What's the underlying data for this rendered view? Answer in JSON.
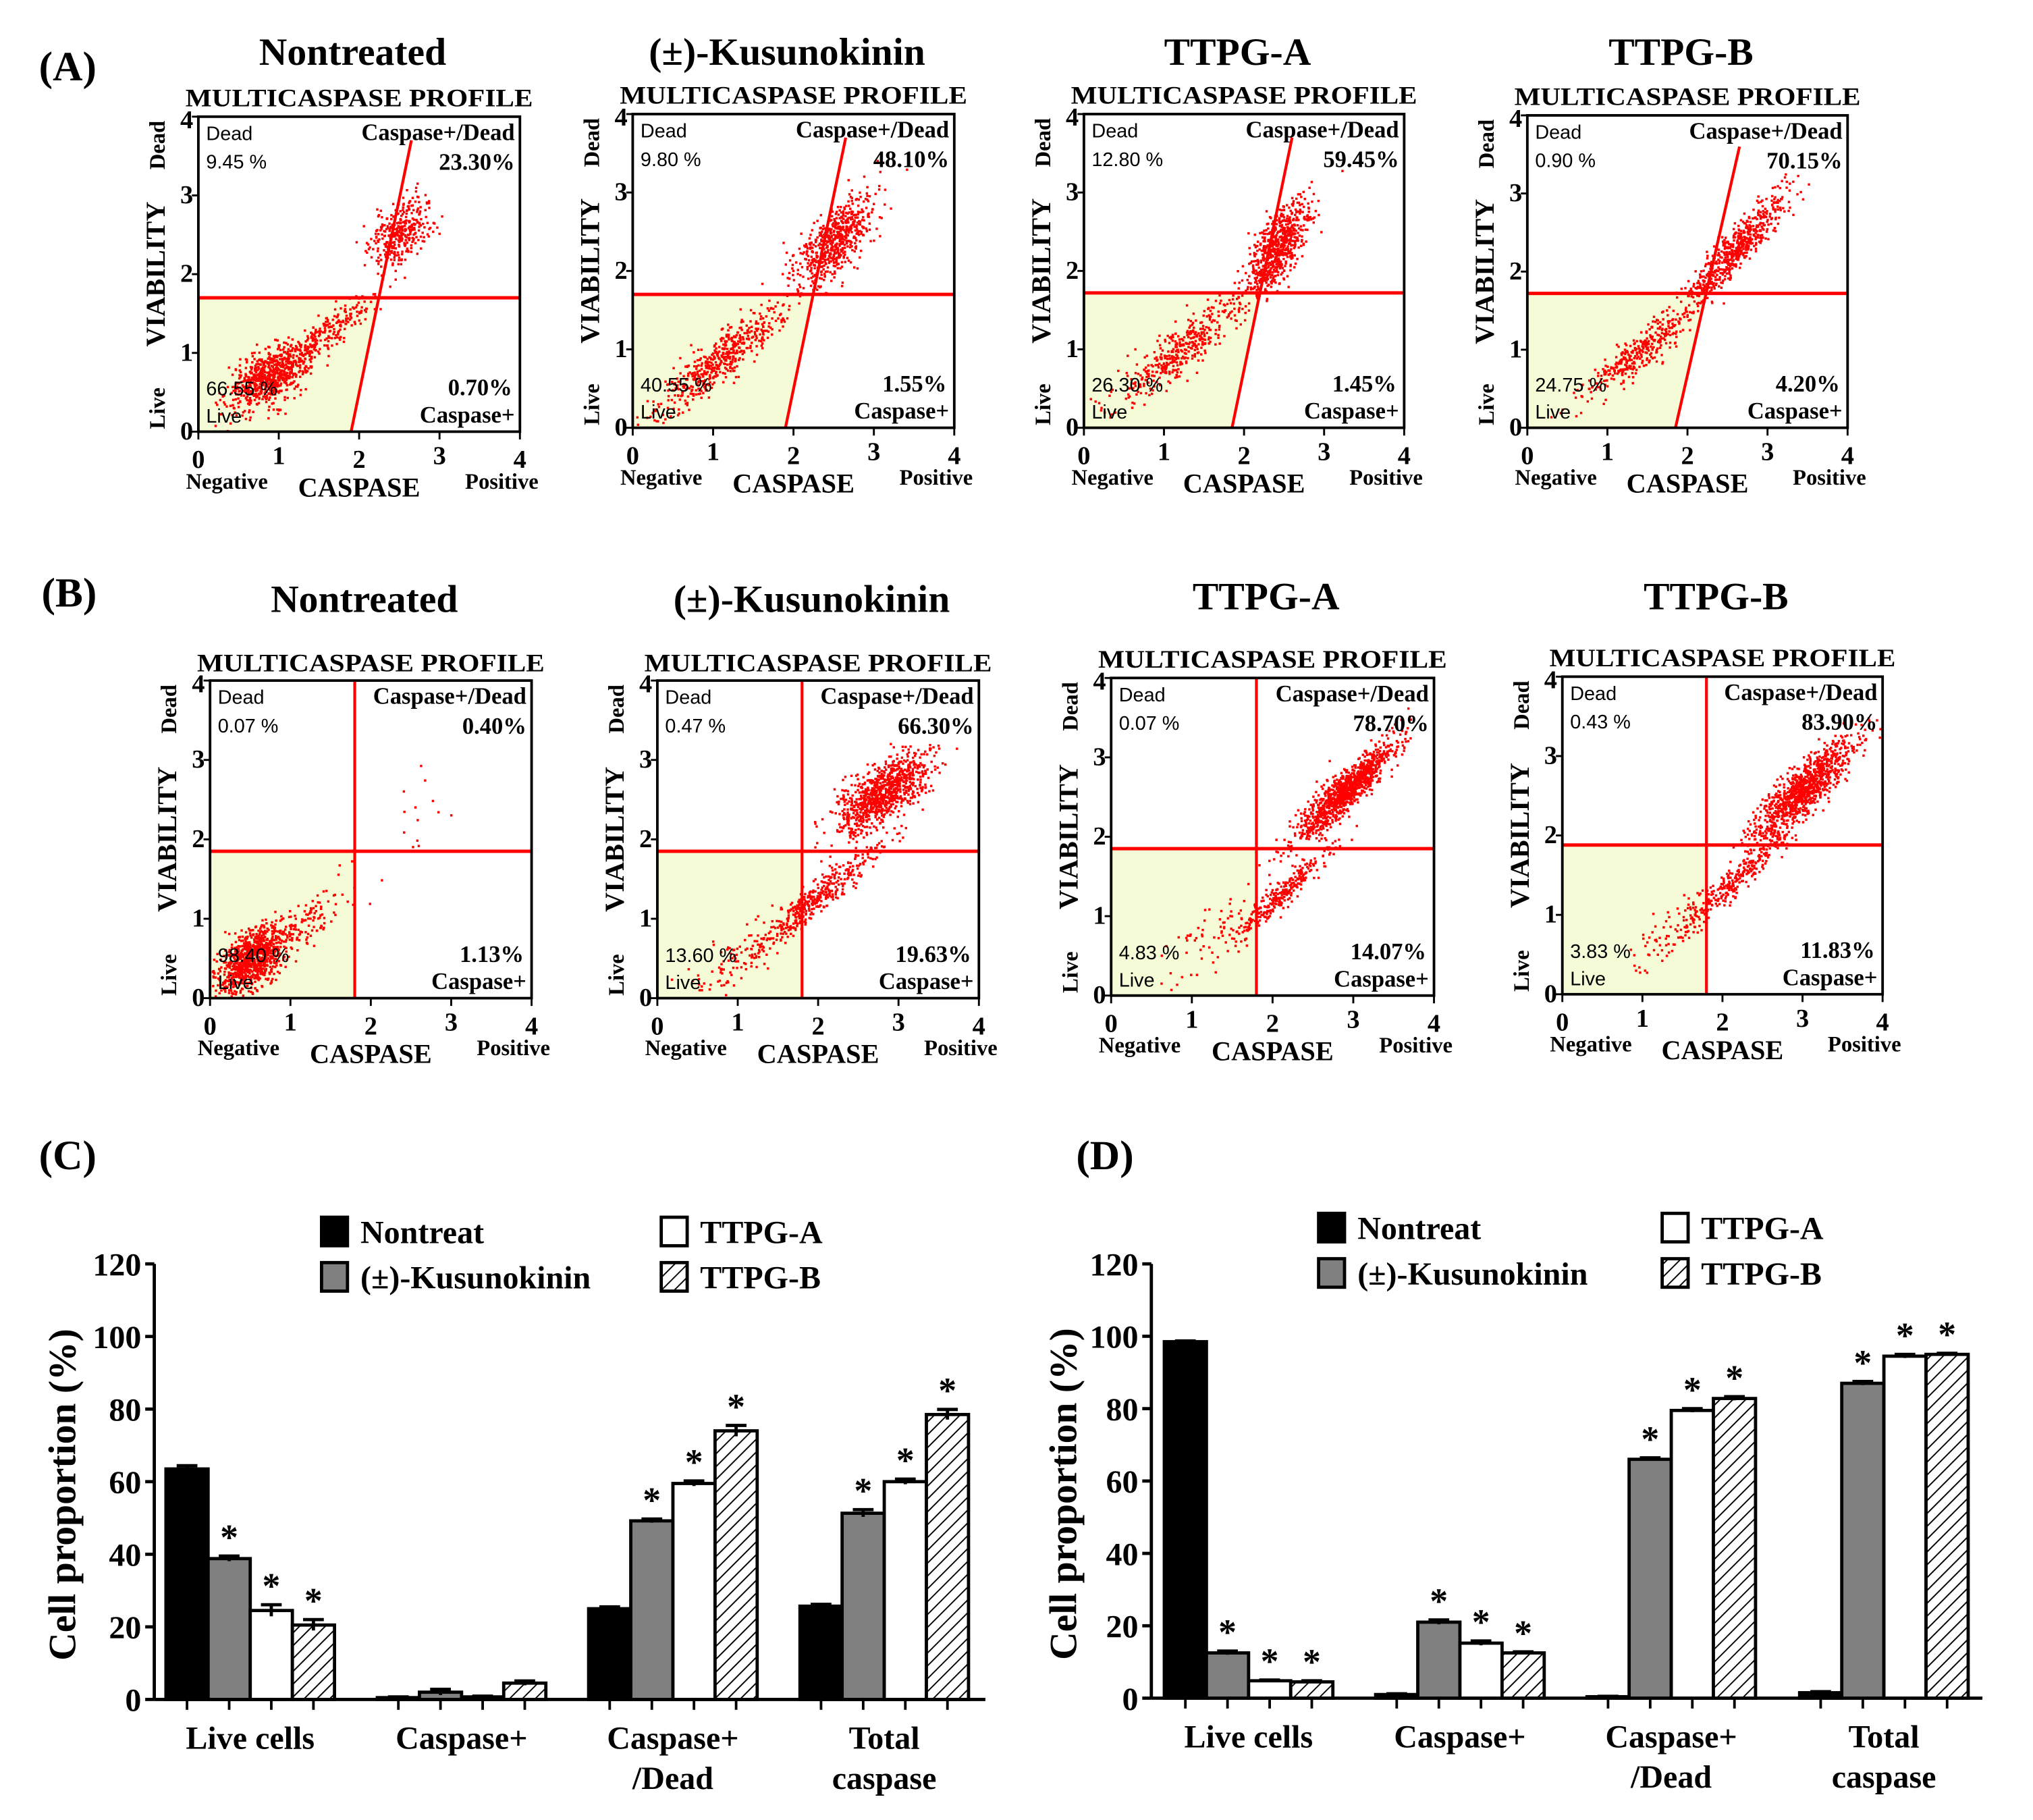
{
  "panel_labels": [
    "(A)",
    "(B)",
    "(C)",
    "(D)"
  ],
  "colors": {
    "gate": "#ff0000",
    "points": "#ff0000",
    "live_fill": "#f4fbd6",
    "nontreat": "#000000",
    "kusunokinin": "#808080",
    "ttpg_a": "#ffffff",
    "ttpg_b": "hatched"
  },
  "chart_data": [
    {
      "panel": "A",
      "type": "scatter",
      "title": "Nontreated",
      "subtitle": "MULTICASPASE PROFILE",
      "xlabel": "CASPASE",
      "xlabel_left": "Negative",
      "xlabel_right": "Positive",
      "ylabel": "VIABILITY",
      "ylabel_bottom": "Live",
      "ylabel_top": "Dead",
      "xlim": [
        0,
        4
      ],
      "ylim": [
        0,
        4
      ],
      "xticks": [
        "0",
        "1",
        "2",
        "3",
        "4"
      ],
      "yticks": [
        "0",
        "1",
        "2",
        "3",
        "4"
      ],
      "quadrants": {
        "dead": {
          "label": "Dead",
          "value": "9.45 %"
        },
        "caspase_dead": {
          "label": "Caspase+/Dead",
          "value": "23.30%"
        },
        "live": {
          "label": "Live",
          "value": "66.55 %"
        },
        "caspase": {
          "label": "Caspase+",
          "value": "0.70%"
        }
      },
      "gate": {
        "horizontal_y": 1.7,
        "divider_from": [
          1.9,
          0
        ],
        "divider_to": [
          2.65,
          3.7
        ]
      },
      "populations": [
        {
          "center": [
            0.85,
            0.7
          ],
          "sd": [
            0.25,
            0.2
          ],
          "rho": 0.5,
          "n": 650
        },
        {
          "center": [
            1.5,
            1.2
          ],
          "sd": [
            0.35,
            0.28
          ],
          "rho": 0.9,
          "n": 300
        },
        {
          "center": [
            2.5,
            2.55
          ],
          "sd": [
            0.2,
            0.22
          ],
          "rho": 0.5,
          "n": 350
        }
      ]
    },
    {
      "panel": "A",
      "type": "scatter",
      "title": "(±)-Kusunokinin",
      "subtitle": "MULTICASPASE PROFILE",
      "xlabel": "CASPASE",
      "xlabel_left": "Negative",
      "xlabel_right": "Positive",
      "ylabel": "VIABILITY",
      "ylabel_bottom": "Live",
      "ylabel_top": "Dead",
      "xlim": [
        0,
        4
      ],
      "ylim": [
        0,
        4
      ],
      "xticks": [
        "0",
        "1",
        "2",
        "3",
        "4"
      ],
      "yticks": [
        "0",
        "1",
        "2",
        "3",
        "4"
      ],
      "quadrants": {
        "dead": {
          "label": "Dead",
          "value": "9.80 %"
        },
        "caspase_dead": {
          "label": "Caspase+/Dead",
          "value": "48.10%"
        },
        "live": {
          "label": "Live",
          "value": "40.55 %"
        },
        "caspase": {
          "label": "Caspase+",
          "value": "1.55%"
        }
      },
      "gate": {
        "horizontal_y": 1.7,
        "divider_from": [
          1.9,
          0
        ],
        "divider_to": [
          2.65,
          3.7
        ]
      },
      "populations": [
        {
          "center": [
            1.1,
            0.9
          ],
          "sd": [
            0.4,
            0.35
          ],
          "rho": 0.9,
          "n": 500
        },
        {
          "center": [
            2.5,
            2.4
          ],
          "sd": [
            0.25,
            0.3
          ],
          "rho": 0.7,
          "n": 600
        }
      ]
    },
    {
      "panel": "A",
      "type": "scatter",
      "title": "TTPG-A",
      "subtitle": "MULTICASPASE PROFILE",
      "xlabel": "CASPASE",
      "xlabel_left": "Negative",
      "xlabel_right": "Positive",
      "ylabel": "VIABILITY",
      "ylabel_bottom": "Live",
      "ylabel_top": "Dead",
      "xlim": [
        0,
        4
      ],
      "ylim": [
        0,
        4
      ],
      "xticks": [
        "0",
        "1",
        "2",
        "3",
        "4"
      ],
      "yticks": [
        "0",
        "1",
        "2",
        "3",
        "4"
      ],
      "quadrants": {
        "dead": {
          "label": "Dead",
          "value": "12.80 %"
        },
        "caspase_dead": {
          "label": "Caspase+/Dead",
          "value": "59.45%"
        },
        "live": {
          "label": "Live",
          "value": "26.30 %"
        },
        "caspase": {
          "label": "Caspase+",
          "value": "1.45%"
        }
      },
      "gate": {
        "horizontal_y": 1.72,
        "divider_from": [
          1.85,
          0
        ],
        "divider_to": [
          2.6,
          3.7
        ]
      },
      "populations": [
        {
          "center": [
            1.2,
            1.0
          ],
          "sd": [
            0.4,
            0.35
          ],
          "rho": 0.9,
          "n": 400
        },
        {
          "center": [
            2.4,
            2.3
          ],
          "sd": [
            0.2,
            0.3
          ],
          "rho": 0.7,
          "n": 700
        }
      ]
    },
    {
      "panel": "A",
      "type": "scatter",
      "title": "TTPG-B",
      "subtitle": "MULTICASPASE PROFILE",
      "xlabel": "CASPASE",
      "xlabel_left": "Negative",
      "xlabel_right": "Positive",
      "ylabel": "VIABILITY",
      "ylabel_bottom": "Live",
      "ylabel_top": "Dead",
      "xlim": [
        0,
        4
      ],
      "ylim": [
        0,
        4
      ],
      "xticks": [
        "0",
        "1",
        "2",
        "3",
        "4"
      ],
      "yticks": [
        "0",
        "1",
        "2",
        "3",
        "4"
      ],
      "quadrants": {
        "dead": {
          "label": "Dead",
          "value": "0.90 %"
        },
        "caspase_dead": {
          "label": "Caspase+/Dead",
          "value": "70.15%"
        },
        "live": {
          "label": "Live",
          "value": "24.75 %"
        },
        "caspase": {
          "label": "Caspase+",
          "value": "4.20%"
        }
      },
      "gate": {
        "horizontal_y": 1.72,
        "divider_from": [
          1.85,
          0
        ],
        "divider_to": [
          2.65,
          3.6
        ]
      },
      "populations": [
        {
          "center": [
            1.4,
            1.0
          ],
          "sd": [
            0.35,
            0.3
          ],
          "rho": 0.9,
          "n": 350
        },
        {
          "center": [
            2.6,
            2.3
          ],
          "sd": [
            0.3,
            0.35
          ],
          "rho": 0.9,
          "n": 600
        }
      ]
    },
    {
      "panel": "B",
      "type": "scatter",
      "title": "Nontreated",
      "subtitle": "MULTICASPASE PROFILE",
      "xlabel": "CASPASE",
      "xlabel_left": "Negative",
      "xlabel_right": "Positive",
      "ylabel": "VIABILITY",
      "ylabel_bottom": "Live",
      "ylabel_top": "Dead",
      "xlim": [
        0,
        4
      ],
      "ylim": [
        0,
        4
      ],
      "xticks": [
        "0",
        "1",
        "2",
        "3",
        "4"
      ],
      "yticks": [
        "0",
        "1",
        "2",
        "3",
        "4"
      ],
      "quadrants": {
        "dead": {
          "label": "Dead",
          "value": "0.07 %"
        },
        "caspase_dead": {
          "label": "Caspase+/Dead",
          "value": "0.40%"
        },
        "live": {
          "label": "Live",
          "value": "98.40 %"
        },
        "caspase": {
          "label": "Caspase+",
          "value": "1.13%"
        }
      },
      "gate": {
        "vertical_x": 1.8,
        "horizontal_y": 1.85
      },
      "populations": [
        {
          "center": [
            0.5,
            0.5
          ],
          "sd": [
            0.2,
            0.2
          ],
          "rho": 0.5,
          "n": 900
        },
        {
          "center": [
            1.1,
            0.9
          ],
          "sd": [
            0.3,
            0.25
          ],
          "rho": 0.8,
          "n": 150
        },
        {
          "center": [
            2.3,
            2.0
          ],
          "sd": [
            0.5,
            0.5
          ],
          "rho": 0.8,
          "n": 20
        }
      ]
    },
    {
      "panel": "B",
      "type": "scatter",
      "title": "(±)-Kusunokinin",
      "subtitle": "MULTICASPASE PROFILE",
      "xlabel": "CASPASE",
      "xlabel_left": "Negative",
      "xlabel_right": "Positive",
      "ylabel": "VIABILITY",
      "ylabel_bottom": "Live",
      "ylabel_top": "Dead",
      "xlim": [
        0,
        4
      ],
      "ylim": [
        0,
        4
      ],
      "xticks": [
        "0",
        "1",
        "2",
        "3",
        "4"
      ],
      "yticks": [
        "0",
        "1",
        "2",
        "3",
        "4"
      ],
      "quadrants": {
        "dead": {
          "label": "Dead",
          "value": "0.47 %"
        },
        "caspase_dead": {
          "label": "Caspase+/Dead",
          "value": "66.30%"
        },
        "live": {
          "label": "Live",
          "value": "13.60 %"
        },
        "caspase": {
          "label": "Caspase+",
          "value": "19.63%"
        }
      },
      "gate": {
        "vertical_x": 1.8,
        "horizontal_y": 1.85
      },
      "populations": [
        {
          "center": [
            2.8,
            2.6
          ],
          "sd": [
            0.3,
            0.25
          ],
          "rho": 0.7,
          "n": 900
        },
        {
          "center": [
            2.0,
            1.3
          ],
          "sd": [
            0.4,
            0.35
          ],
          "rho": 0.95,
          "n": 400
        },
        {
          "center": [
            1.0,
            0.5
          ],
          "sd": [
            0.3,
            0.25
          ],
          "rho": 0.7,
          "n": 100
        }
      ]
    },
    {
      "panel": "B",
      "type": "scatter",
      "title": "TTPG-A",
      "subtitle": "MULTICASPASE PROFILE",
      "xlabel": "CASPASE",
      "xlabel_left": "Negative",
      "xlabel_right": "Positive",
      "ylabel": "VIABILITY",
      "ylabel_bottom": "Live",
      "ylabel_top": "Dead",
      "xlim": [
        0,
        4
      ],
      "ylim": [
        0,
        4
      ],
      "xticks": [
        "0",
        "1",
        "2",
        "3",
        "4"
      ],
      "yticks": [
        "0",
        "1",
        "2",
        "3",
        "4"
      ],
      "quadrants": {
        "dead": {
          "label": "Dead",
          "value": "0.07 %"
        },
        "caspase_dead": {
          "label": "Caspase+/Dead",
          "value": "78.70%"
        },
        "live": {
          "label": "Live",
          "value": "4.83 %"
        },
        "caspase": {
          "label": "Caspase+",
          "value": "14.07%"
        }
      },
      "gate": {
        "vertical_x": 1.8,
        "horizontal_y": 1.85
      },
      "populations": [
        {
          "center": [
            2.9,
            2.6
          ],
          "sd": [
            0.3,
            0.3
          ],
          "rho": 0.9,
          "n": 1100
        },
        {
          "center": [
            2.1,
            1.3
          ],
          "sd": [
            0.3,
            0.3
          ],
          "rho": 0.95,
          "n": 300
        },
        {
          "center": [
            1.2,
            0.8
          ],
          "sd": [
            0.3,
            0.3
          ],
          "rho": 0.8,
          "n": 60
        }
      ]
    },
    {
      "panel": "B",
      "type": "scatter",
      "title": "TTPG-B",
      "subtitle": "MULTICASPASE PROFILE",
      "xlabel": "CASPASE",
      "xlabel_left": "Negative",
      "xlabel_right": "Positive",
      "ylabel": "VIABILITY",
      "ylabel_bottom": "Live",
      "ylabel_top": "Dead",
      "xlim": [
        0,
        4
      ],
      "ylim": [
        0,
        4
      ],
      "xticks": [
        "0",
        "1",
        "2",
        "3",
        "4"
      ],
      "yticks": [
        "0",
        "1",
        "2",
        "3",
        "4"
      ],
      "quadrants": {
        "dead": {
          "label": "Dead",
          "value": "0.43 %"
        },
        "caspase_dead": {
          "label": "Caspase+/Dead",
          "value": "83.90%"
        },
        "live": {
          "label": "Live",
          "value": "3.83 %"
        },
        "caspase": {
          "label": "Caspase+",
          "value": "11.83%"
        }
      },
      "gate": {
        "vertical_x": 1.8,
        "horizontal_y": 1.88
      },
      "populations": [
        {
          "center": [
            3.0,
            2.6
          ],
          "sd": [
            0.3,
            0.3
          ],
          "rho": 0.85,
          "n": 1000
        },
        {
          "center": [
            2.2,
            1.5
          ],
          "sd": [
            0.35,
            0.35
          ],
          "rho": 0.95,
          "n": 300
        },
        {
          "center": [
            1.3,
            0.8
          ],
          "sd": [
            0.3,
            0.3
          ],
          "rho": 0.8,
          "n": 80
        }
      ]
    },
    {
      "panel": "C",
      "type": "bar",
      "ylabel": "Cell proportion (%)",
      "ylim": [
        0,
        120
      ],
      "yticks": [
        "0",
        "20",
        "40",
        "60",
        "80",
        "100",
        "120"
      ],
      "significance_marker": "*",
      "categories": [
        [
          "Live cells"
        ],
        [
          "Caspase+"
        ],
        [
          "Caspase+",
          "/Dead"
        ],
        [
          "Total",
          "caspase"
        ]
      ],
      "series": [
        {
          "name": "Nontreat",
          "values": [
            63.5,
            0.5,
            25.0,
            25.7
          ],
          "errors": [
            0.9,
            0.2,
            0.5,
            0.5
          ],
          "significant": [
            false,
            false,
            false,
            false
          ]
        },
        {
          "name": "(±)-Kusunokinin",
          "values": [
            38.8,
            2.0,
            49.2,
            51.3
          ],
          "errors": [
            0.7,
            0.8,
            0.5,
            1.0
          ],
          "significant": [
            true,
            false,
            true,
            true
          ]
        },
        {
          "name": "TTPG-A",
          "values": [
            24.5,
            0.7,
            59.5,
            60.0
          ],
          "errors": [
            1.6,
            0.2,
            0.7,
            0.7
          ],
          "significant": [
            true,
            false,
            true,
            true
          ]
        },
        {
          "name": "TTPG-B",
          "values": [
            20.5,
            4.5,
            74.0,
            78.5
          ],
          "errors": [
            1.5,
            0.6,
            1.5,
            1.4
          ],
          "significant": [
            true,
            false,
            true,
            true
          ]
        }
      ],
      "legend": "top"
    },
    {
      "panel": "D",
      "type": "bar",
      "ylabel": "Cell proportion (%)",
      "ylim": [
        0,
        120
      ],
      "yticks": [
        "0",
        "20",
        "40",
        "60",
        "80",
        "100",
        "120"
      ],
      "significance_marker": "*",
      "categories": [
        [
          "Live cells"
        ],
        [
          "Caspase+"
        ],
        [
          "Caspase+",
          "/Dead"
        ],
        [
          "Total",
          "caspase"
        ]
      ],
      "series": [
        {
          "name": "Nontreat",
          "values": [
            98.5,
            1.0,
            0.4,
            1.5
          ],
          "errors": [
            0.2,
            0.2,
            0.1,
            0.3
          ],
          "significant": [
            false,
            false,
            false,
            false
          ]
        },
        {
          "name": "(±)-Kusunokinin",
          "values": [
            12.5,
            21.0,
            66.0,
            87.0
          ],
          "errors": [
            0.5,
            0.6,
            0.4,
            0.5
          ],
          "significant": [
            true,
            true,
            true,
            true
          ]
        },
        {
          "name": "TTPG-A",
          "values": [
            4.8,
            15.2,
            79.5,
            94.5
          ],
          "errors": [
            0.2,
            0.6,
            0.5,
            0.5
          ],
          "significant": [
            true,
            true,
            true,
            true
          ]
        },
        {
          "name": "TTPG-B",
          "values": [
            4.5,
            12.5,
            82.8,
            95.0
          ],
          "errors": [
            0.3,
            0.3,
            0.5,
            0.3
          ],
          "significant": [
            true,
            true,
            true,
            true
          ]
        }
      ],
      "legend": "top"
    }
  ]
}
